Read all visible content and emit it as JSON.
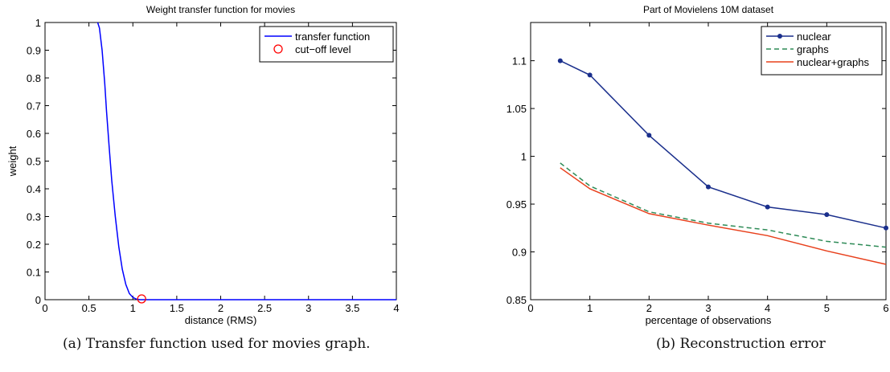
{
  "chart_data": [
    {
      "id": "a",
      "type": "line",
      "title": "Weight transfer function for movies",
      "xlabel": "distance (RMS)",
      "ylabel": "weight",
      "xlim": [
        0,
        4
      ],
      "ylim": [
        0,
        1
      ],
      "xticks": [
        "0",
        "0.5",
        "1",
        "1.5",
        "2",
        "2.5",
        "3",
        "3.5",
        "4"
      ],
      "yticks": [
        "0",
        "0.1",
        "0.2",
        "0.3",
        "0.4",
        "0.5",
        "0.6",
        "0.7",
        "0.8",
        "0.9",
        "1"
      ],
      "grid": false,
      "legend_position": "top-right",
      "series": [
        {
          "name": "transfer function",
          "color": "#0000ff",
          "style": "solid",
          "x": [
            0.6,
            0.62,
            0.65,
            0.68,
            0.7,
            0.73,
            0.76,
            0.8,
            0.84,
            0.88,
            0.92,
            0.96,
            1.0,
            1.04,
            1.08,
            1.12,
            1.2,
            1.5,
            2.0,
            2.5,
            3.0,
            3.5,
            4.0
          ],
          "y": [
            1.0,
            0.98,
            0.9,
            0.78,
            0.68,
            0.55,
            0.43,
            0.3,
            0.19,
            0.11,
            0.055,
            0.022,
            0.008,
            0.002,
            0.0,
            0.0,
            0.0,
            0.0,
            0.0,
            0.0,
            0.0,
            0.0,
            0.0
          ]
        },
        {
          "name": "cut−off level",
          "color": "#ff0000",
          "marker": "circle",
          "x": [
            1.1
          ],
          "y": [
            0.003
          ]
        }
      ]
    },
    {
      "id": "b",
      "type": "line",
      "title": "Part of Movielens 10M dataset",
      "xlabel": "percentage of observations",
      "ylabel": "",
      "xlim": [
        0,
        6
      ],
      "ylim": [
        0.85,
        1.14
      ],
      "xticks": [
        "0",
        "1",
        "2",
        "3",
        "4",
        "5",
        "6"
      ],
      "yticks": [
        "0.85",
        "0.9",
        "0.95",
        "1",
        "1.05",
        "1.1"
      ],
      "grid": false,
      "legend_position": "top-right",
      "series": [
        {
          "name": "nuclear",
          "color": "#1a2f8c",
          "style": "solid",
          "marker": "dot",
          "x": [
            0.5,
            1,
            2,
            3,
            4,
            5,
            6
          ],
          "y": [
            1.1,
            1.085,
            1.022,
            0.968,
            0.947,
            0.939,
            0.925
          ]
        },
        {
          "name": "graphs",
          "color": "#2e8b57",
          "style": "dashed",
          "x": [
            0.5,
            1,
            2,
            3,
            4,
            5,
            6
          ],
          "y": [
            0.993,
            0.969,
            0.942,
            0.93,
            0.923,
            0.911,
            0.905
          ]
        },
        {
          "name": "nuclear+graphs",
          "color": "#e8401c",
          "style": "solid",
          "x": [
            0.5,
            1,
            2,
            3,
            4,
            5,
            6
          ],
          "y": [
            0.988,
            0.966,
            0.94,
            0.928,
            0.917,
            0.901,
            0.887
          ]
        }
      ]
    }
  ],
  "captions": {
    "a": "(a) Transfer function used for movies graph.",
    "b": "(b) Reconstruction error"
  }
}
